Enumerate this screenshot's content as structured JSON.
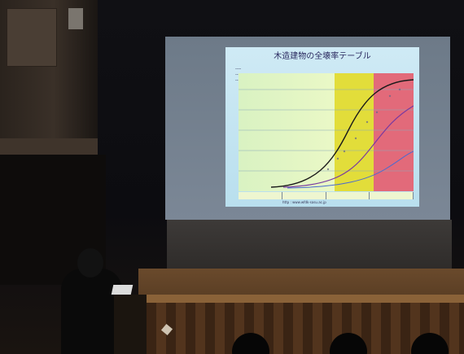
{
  "scene": {
    "description_colors": {
      "slide_bg": "#cfeaf5",
      "zone_green": "#d9f2c2",
      "zone_yellow": "#e2dd3a",
      "zone_pink": "#e26a7a",
      "curve_dark": "#1a1a1a",
      "curve_blue": "#4a6ad0",
      "curve_purple": "#7a3aa0"
    }
  },
  "slide": {
    "title": "木造建物の全壊率テーブル",
    "legend": [
      "----",
      "----",
      "----"
    ],
    "labels": {
      "curve_a": "",
      "curve_b": ""
    },
    "zones": [
      "",
      "",
      "",
      ""
    ],
    "footer_url": "http : www.wfdk-sasu.ac.jp"
  }
}
